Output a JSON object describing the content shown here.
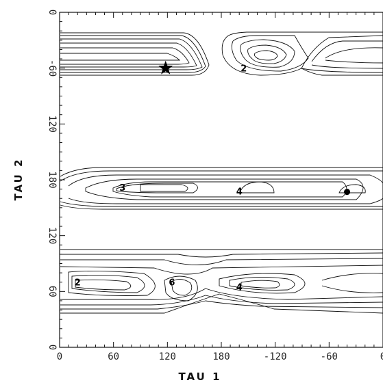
{
  "chart_data": {
    "type": "heatmap",
    "subtype": "contour",
    "title": "",
    "xlabel": "TAU 1",
    "ylabel": "TAU 2",
    "x_ticks": [
      "0",
      "60",
      "120",
      "180",
      "-120",
      "-60",
      "0"
    ],
    "y_ticks": [
      "0",
      "-60",
      "120",
      "180",
      "120",
      "60",
      "0"
    ],
    "grid": false,
    "regions": [
      {
        "name": "band-top-left",
        "x_range": [
          0,
          160
        ],
        "y_range": [
          -90,
          -30
        ]
      },
      {
        "name": "band-top-right",
        "x_range": [
          180,
          360
        ],
        "y_range": [
          -90,
          -30
        ]
      },
      {
        "name": "band-middle",
        "x_range": [
          0,
          360
        ],
        "y_range": [
          150,
          200
        ]
      },
      {
        "name": "band-bottom",
        "x_range": [
          0,
          360
        ],
        "y_range": [
          40,
          100
        ]
      }
    ],
    "contour_labels": [
      {
        "text": "2",
        "x": 205,
        "y": -60
      },
      {
        "text": "3",
        "x": 70,
        "y": 172
      },
      {
        "text": "4",
        "x": 200,
        "y": 168
      },
      {
        "text": "2",
        "x": 20,
        "y": 70
      },
      {
        "text": "6",
        "x": 125,
        "y": 70
      },
      {
        "text": "4",
        "x": 200,
        "y": 65
      }
    ],
    "markers": [
      {
        "type": "star",
        "x": 118,
        "y": -60
      },
      {
        "type": "dot",
        "x": 320,
        "y": 167
      }
    ]
  }
}
